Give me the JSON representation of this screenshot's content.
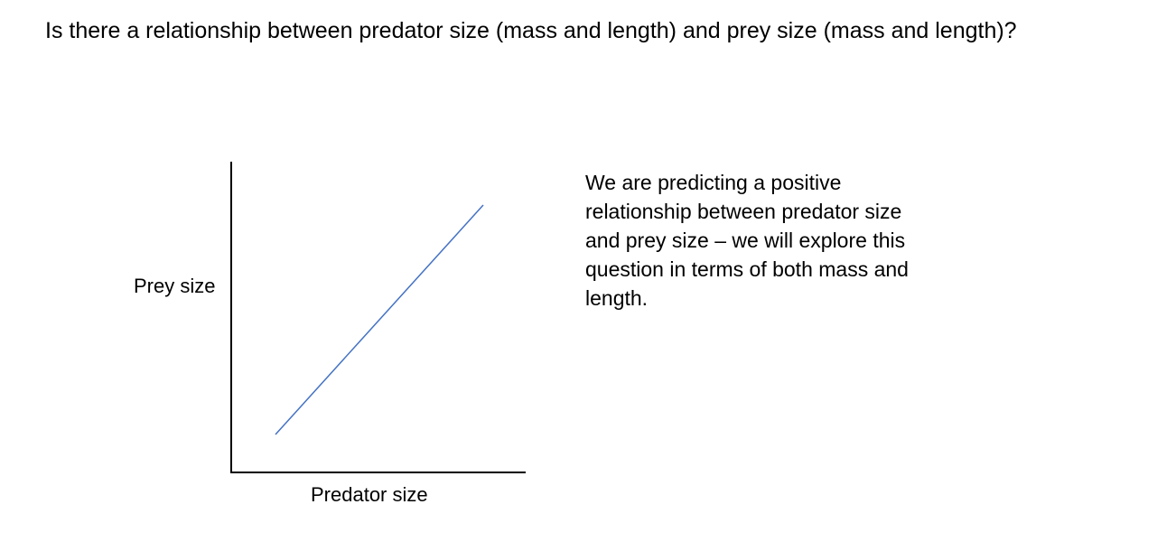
{
  "title": "Is there a relationship between predator size (mass and length) and prey size (mass and length)?",
  "diagram": {
    "y_label": "Prey size",
    "x_label": "Predator size",
    "line_color": "#4472C4",
    "axis_color": "#000000",
    "trend": "positive"
  },
  "explanation": "We are predicting a positive relationship between predator size and prey size – we will explore this question in terms of both mass and length."
}
